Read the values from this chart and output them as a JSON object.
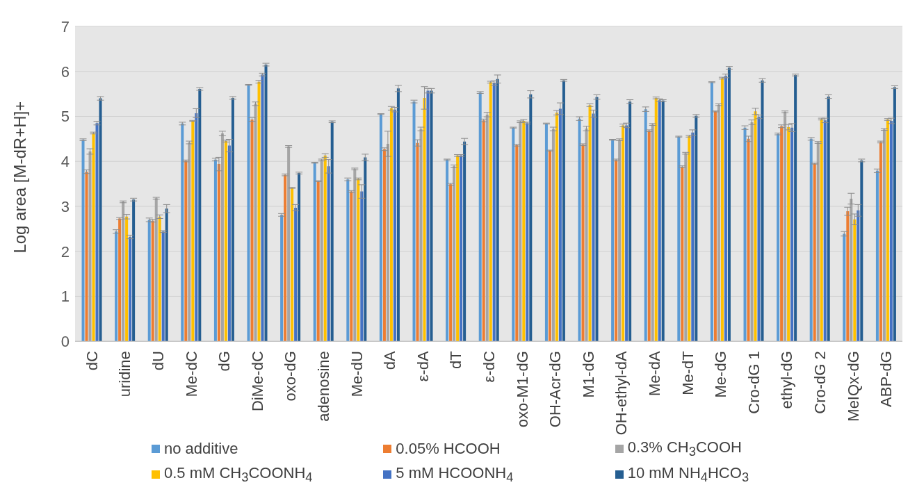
{
  "chart_data": {
    "type": "bar",
    "ylabel": "Log area [M-dR+H]+",
    "ylim": [
      0,
      7
    ],
    "yticks": [
      0,
      1,
      2,
      3,
      4,
      5,
      6,
      7
    ],
    "grid": "y",
    "legend": "bottom",
    "categories": [
      "dC",
      "uridine",
      "dU",
      "Me-dC",
      "dG",
      "DiMe-dC",
      "oxo-dG",
      "adenosine",
      "Me-dU",
      "dA",
      "ε-dA",
      "dT",
      "ε-dC",
      "oxo-M1-dG",
      "OH-Acr-dG",
      "M1-dG",
      "OH-ethyl-dA",
      "Me-dA",
      "Me-dT",
      "Me-dG",
      "Cro-dG 1",
      "ethyl-dG",
      "Cro-dG 2",
      "MeIQx-dG",
      "ABP-dG"
    ],
    "series": [
      {
        "name": "no additive",
        "color": "#5b9bd5",
        "values": [
          4.48,
          2.44,
          2.7,
          4.84,
          4.04,
          5.7,
          2.81,
          3.97,
          3.6,
          5.05,
          5.33,
          4.04,
          5.53,
          4.75,
          4.84,
          4.95,
          4.48,
          5.16,
          4.55,
          5.76,
          4.75,
          4.61,
          4.5,
          2.39,
          3.79
        ],
        "errors": [
          0.02,
          0.04,
          0.04,
          0.03,
          0.03,
          0.01,
          0.03,
          0.01,
          0.03,
          0.01,
          0.03,
          0.01,
          0.02,
          0.01,
          0.01,
          0.04,
          0.01,
          0.05,
          0.01,
          0.01,
          0.04,
          0.02,
          0.03,
          0.05,
          0.04
        ]
      },
      {
        "name": "0.05% HCOOH",
        "color": "#ed7d31",
        "values": [
          3.77,
          2.73,
          2.68,
          4.01,
          3.94,
          4.93,
          3.7,
          3.56,
          3.33,
          4.27,
          4.41,
          3.49,
          4.91,
          4.36,
          4.24,
          4.37,
          4.03,
          4.68,
          3.88,
          5.11,
          4.5,
          4.78,
          3.95,
          2.89,
          4.43
        ],
        "errors": [
          0.04,
          0.02,
          0.03,
          0.02,
          0.15,
          0.04,
          0.02,
          0.01,
          0.02,
          0.03,
          0.07,
          0.02,
          0.03,
          0.02,
          0.01,
          0.02,
          0.02,
          0.02,
          0.02,
          0.01,
          0.06,
          0.03,
          0.01,
          0.09,
          0.02
        ]
      },
      {
        "name": "0.3% CH$_{3}$COOH",
        "color": "#a5a5a5",
        "values": [
          4.22,
          3.1,
          3.18,
          4.42,
          4.62,
          5.28,
          4.33,
          4.03,
          3.83,
          4.39,
          4.72,
          3.89,
          5.04,
          4.88,
          4.72,
          4.73,
          4.48,
          4.82,
          4.18,
          5.26,
          4.87,
          5.1,
          4.42,
          3.17,
          4.71
        ],
        "errors": [
          0.06,
          0.02,
          0.02,
          0.03,
          0.05,
          0.04,
          0.02,
          0.02,
          0.02,
          0.28,
          0.04,
          0.03,
          0.05,
          0.02,
          0.04,
          0.05,
          0.02,
          0.02,
          0.02,
          0.02,
          0.05,
          0.02,
          0.02,
          0.12,
          0.02
        ]
      },
      {
        "name": "0.5 mM CH$_{3}$COONH$_{4}$",
        "color": "#ffc000",
        "values": [
          4.63,
          2.77,
          2.77,
          4.9,
          4.45,
          5.77,
          3.41,
          4.13,
          3.61,
          5.18,
          5.41,
          4.13,
          5.76,
          4.9,
          5.08,
          5.25,
          4.8,
          5.41,
          4.56,
          5.85,
          5.11,
          4.76,
          4.94,
          2.71,
          4.93
        ],
        "errors": [
          0.02,
          0.05,
          0.04,
          0.01,
          0.02,
          0.03,
          0.01,
          0.04,
          0.02,
          0.04,
          0.25,
          0.02,
          0.02,
          0.03,
          0.05,
          0.03,
          0.03,
          0.02,
          0.02,
          0.02,
          0.07,
          0.06,
          0.02,
          0.12,
          0.02
        ]
      },
      {
        "name": "5 mM HCOONH$_{4}$",
        "color": "#4472c4",
        "values": [
          4.85,
          2.32,
          2.44,
          5.07,
          4.35,
          5.93,
          2.97,
          3.89,
          3.33,
          5.15,
          5.57,
          4.13,
          5.74,
          4.85,
          5.17,
          5.06,
          4.8,
          5.36,
          4.64,
          5.9,
          4.99,
          4.75,
          4.91,
          2.91,
          4.9
        ],
        "errors": [
          0.04,
          0.04,
          0.02,
          0.1,
          0.14,
          0.03,
          0.07,
          0.15,
          0.15,
          0.05,
          0.05,
          0.02,
          0.05,
          0.02,
          0.13,
          0.08,
          0.05,
          0.03,
          0.06,
          0.04,
          0.04,
          0.09,
          0.05,
          0.13,
          0.06
        ]
      },
      {
        "name": "10 mM NH$_{4}$HCO$_{3}$",
        "color": "#255e91",
        "values": [
          5.4,
          3.15,
          2.95,
          5.61,
          5.41,
          6.15,
          3.74,
          4.88,
          4.09,
          5.62,
          5.57,
          4.44,
          5.83,
          5.49,
          5.8,
          5.43,
          5.33,
          5.35,
          5.01,
          6.08,
          5.8,
          5.92,
          5.44,
          4.02,
          5.65
        ],
        "errors": [
          0.04,
          0.03,
          0.09,
          0.03,
          0.03,
          0.03,
          0.02,
          0.02,
          0.07,
          0.07,
          0.05,
          0.07,
          0.09,
          0.08,
          0.02,
          0.05,
          0.04,
          0.02,
          0.03,
          0.03,
          0.04,
          0.02,
          0.04,
          0.03,
          0.03
        ]
      }
    ]
  }
}
